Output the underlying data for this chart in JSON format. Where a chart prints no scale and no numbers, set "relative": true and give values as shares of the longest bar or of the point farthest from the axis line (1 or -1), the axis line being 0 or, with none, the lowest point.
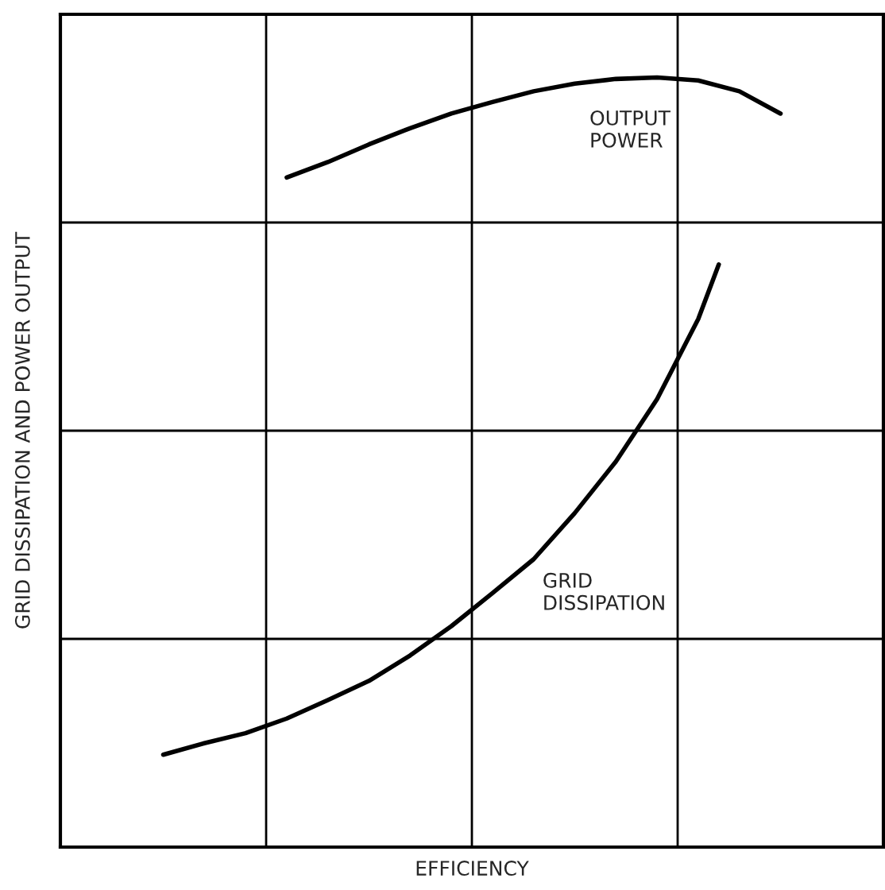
{
  "chart_data": {
    "type": "line",
    "relative": true,
    "xlabel": "EFFICIENCY",
    "ylabel": "GRID DISSIPATION AND POWER OUTPUT",
    "categories": [
      null,
      null,
      null,
      null,
      null,
      null,
      null,
      null,
      null,
      null,
      null,
      null,
      null,
      null,
      null,
      null,
      null,
      null,
      null,
      null,
      null,
      null,
      null,
      null,
      null,
      null,
      null,
      null,
      null,
      null,
      null,
      null,
      null,
      null,
      null,
      null,
      null,
      null,
      null,
      null,
      null
    ],
    "series": [
      {
        "name": "OUTPUT\nPOWER",
        "color": "#000000",
        "values": [
          null,
          null,
          null,
          null,
          null,
          null,
          null,
          null,
          null,
          null,
          null,
          0.87,
          null,
          0.89,
          null,
          0.913,
          null,
          0.934,
          null,
          0.953,
          null,
          0.968,
          null,
          0.982,
          null,
          0.992,
          null,
          0.998,
          null,
          1.0,
          null,
          0.996,
          null,
          0.982,
          null,
          0.953,
          null,
          null,
          null,
          null,
          null
        ]
      },
      {
        "name": "GRID\nDISSIPATION",
        "color": "#000000",
        "values": [
          null,
          null,
          null,
          null,
          null,
          0.12,
          null,
          0.135,
          null,
          0.148,
          null,
          0.167,
          null,
          0.191,
          null,
          0.216,
          null,
          0.249,
          null,
          0.287,
          null,
          0.33,
          null,
          0.374,
          null,
          0.434,
          null,
          0.501,
          null,
          0.582,
          null,
          0.686,
          0.757,
          null,
          null,
          null,
          null,
          null,
          null,
          null,
          null
        ]
      }
    ],
    "grid": true,
    "line_style": "solid",
    "marker": "none",
    "tick_labels": false
  }
}
